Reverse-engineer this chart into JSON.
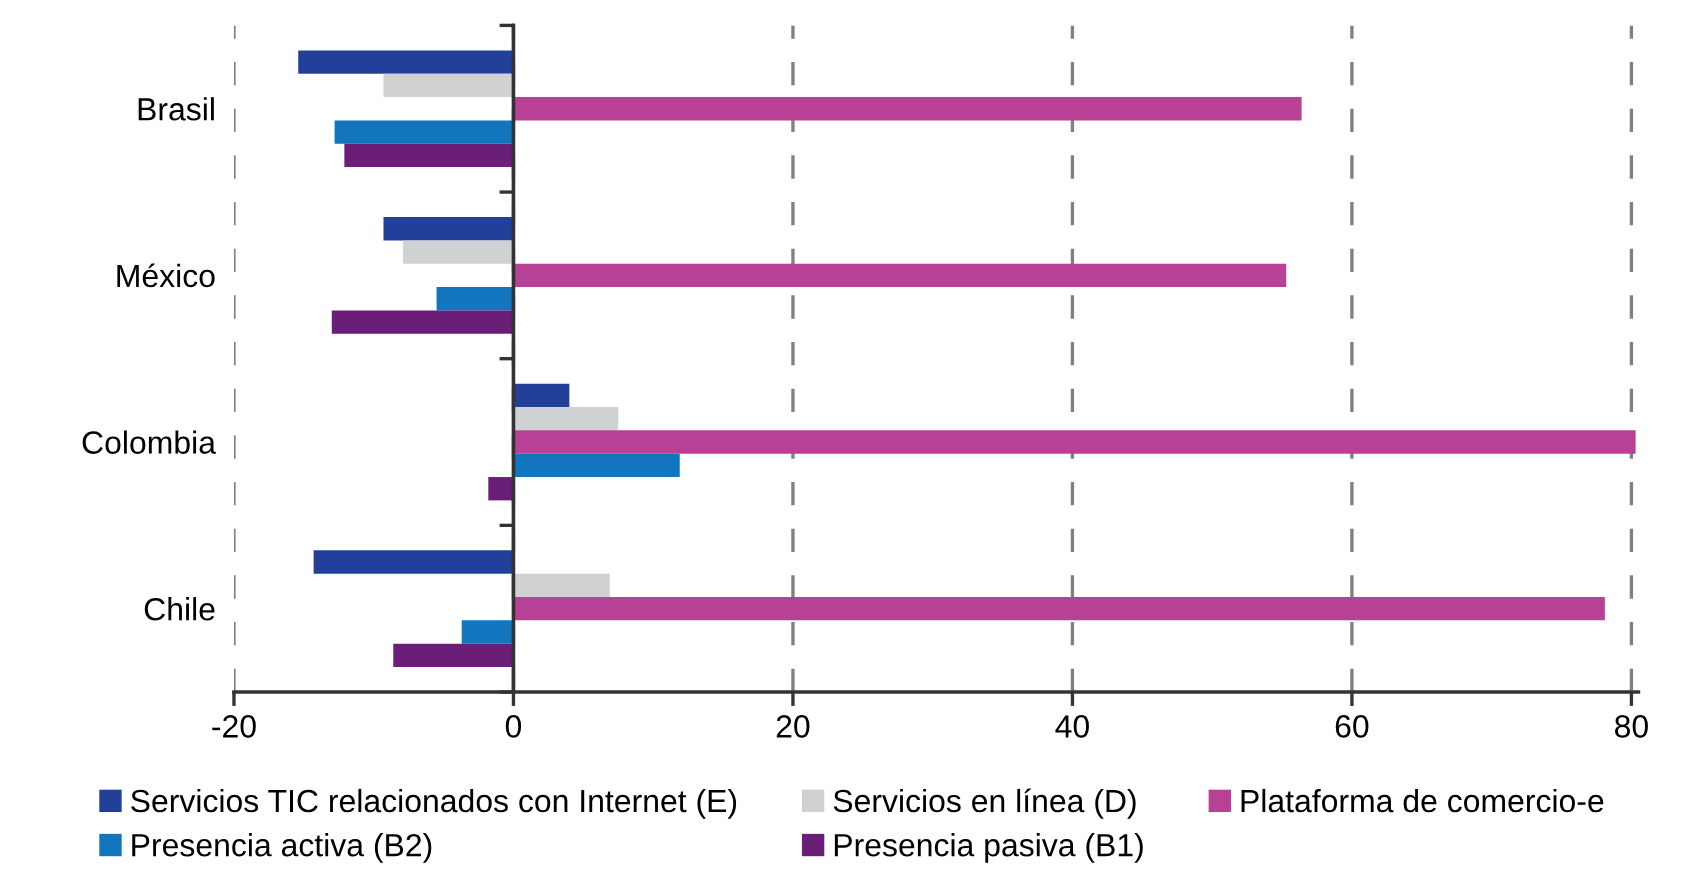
{
  "chart_data": {
    "type": "bar",
    "orientation": "horizontal",
    "categories": [
      "Brasil",
      "México",
      "Colombia",
      "Chile"
    ],
    "series": [
      {
        "name": "Servicios TIC relacionados con Internet (E)",
        "color": "#22409a",
        "values": [
          -15.4,
          -9.3,
          4.0,
          -14.3
        ]
      },
      {
        "name": "Servicios en línea (D)",
        "color": "#d0d1d3",
        "values": [
          -9.3,
          -7.9,
          7.5,
          6.9
        ]
      },
      {
        "name": "Plataforma de comercio-e",
        "color": "#b64195",
        "values": [
          56.4,
          55.3,
          80.3,
          78.1
        ]
      },
      {
        "name": "Presencia activa (B2)",
        "color": "#1276be",
        "values": [
          -12.8,
          -5.5,
          11.9,
          -3.7
        ]
      },
      {
        "name": "Presencia pasiva (B1)",
        "color": "#6a1e78",
        "values": [
          -12.1,
          -13.0,
          -1.8,
          -8.6
        ]
      }
    ],
    "xlim": [
      -20,
      80.5
    ],
    "xticks": [
      -20,
      0,
      20,
      40,
      60,
      80
    ],
    "grid": "x",
    "legend": "bottom"
  }
}
